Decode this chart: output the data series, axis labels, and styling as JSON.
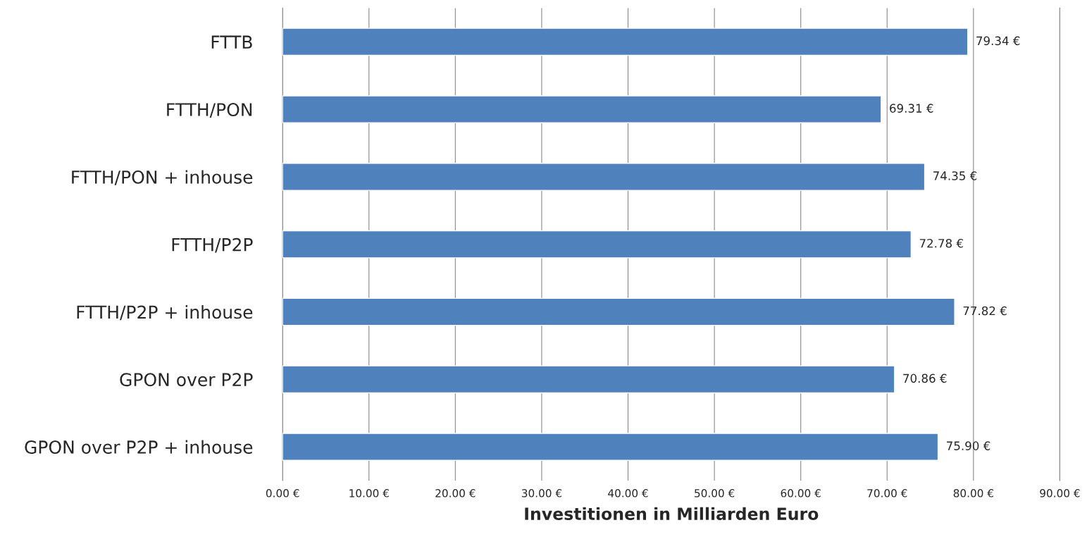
{
  "chart_data": {
    "type": "bar",
    "orientation": "horizontal",
    "xlabel": "Investitionen in Milliarden Euro",
    "categories": [
      "FTTB",
      "FTTH/PON",
      "FTTH/PON + inhouse",
      "FTTH/P2P",
      "FTTH/P2P + inhouse",
      "GPON over P2P",
      "GPON over P2P + inhouse"
    ],
    "values": [
      79.34,
      69.31,
      74.35,
      72.78,
      77.82,
      70.86,
      75.9
    ],
    "value_labels": [
      "79.34 €",
      "69.31 €",
      "74.35 €",
      "72.78 €",
      "77.82 €",
      "70.86 €",
      "75.90 €"
    ],
    "color": "#4f81bd",
    "xlim": [
      0,
      90
    ],
    "xticks": [
      {
        "value": 0,
        "label": "0.00 €"
      },
      {
        "value": 10,
        "label": "10.00 €"
      },
      {
        "value": 20,
        "label": "20.00 €"
      },
      {
        "value": 30,
        "label": "30.00 €"
      },
      {
        "value": 40,
        "label": "40.00 €"
      },
      {
        "value": 50,
        "label": "50.00 €"
      },
      {
        "value": 60,
        "label": "60.00 €"
      },
      {
        "value": 70,
        "label": "70.00 €"
      },
      {
        "value": 80,
        "label": "80.00 €"
      },
      {
        "value": 90,
        "label": "90.00 €"
      }
    ],
    "grid": "x"
  }
}
